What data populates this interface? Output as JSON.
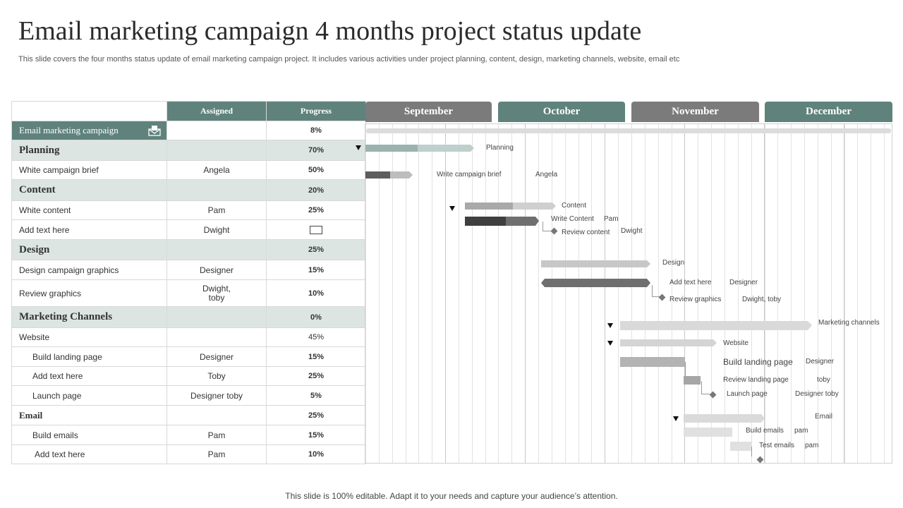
{
  "header": {
    "title": "Email marketing campaign 4 months project status update",
    "subtitle": "This slide covers the four months status update of email marketing campaign project. It includes various activities under project planning, content, design, marketing channels, website, email etc"
  },
  "table": {
    "col_assigned": "Assigned",
    "col_progress": "Progress",
    "rows": [
      {
        "name": "Email marketing campaign",
        "assigned": "",
        "progress": "8%"
      },
      {
        "name": "Planning",
        "assigned": "",
        "progress": "70%"
      },
      {
        "name": "White campaign brief",
        "assigned": "Angela",
        "progress": "50%"
      },
      {
        "name": "Content",
        "assigned": "",
        "progress": "20%"
      },
      {
        "name": "White content",
        "assigned": "Pam",
        "progress": "25%"
      },
      {
        "name": "Add text here",
        "assigned": "Dwight",
        "progress": ""
      },
      {
        "name": "Design",
        "assigned": "",
        "progress": "25%"
      },
      {
        "name": "Design campaign graphics",
        "assigned": "Designer",
        "progress": "15%"
      },
      {
        "name": "Review graphics",
        "assigned": "Dwight,",
        "assigned2": "toby",
        "progress": "10%"
      },
      {
        "name": "Marketing Channels",
        "assigned": "",
        "progress": "0%"
      },
      {
        "name": "Website",
        "assigned": "",
        "progress": "45%"
      },
      {
        "name": "Build landing page",
        "assigned": "Designer",
        "progress": "15%"
      },
      {
        "name": "Add text here",
        "assigned": "Toby",
        "progress": "25%"
      },
      {
        "name": "Launch page",
        "assigned": "Designer toby",
        "progress": "5%"
      },
      {
        "name": "Email",
        "assigned": "",
        "progress": "25%"
      },
      {
        "name": "Build emails",
        "assigned": "Pam",
        "progress": "15%"
      },
      {
        "name": "Add text here",
        "assigned": "Pam",
        "progress": "10%"
      }
    ]
  },
  "months": [
    "September",
    "October",
    "November",
    "December"
  ],
  "gantt": {
    "planning": "Planning",
    "write_brief": "Write campaign brief",
    "angela": "Angela",
    "content": "Content",
    "write_content": "Write Content",
    "pam": "Pam",
    "review_content": "Review content",
    "dwight": "Dwight",
    "design": "Design",
    "add_text": "Add text here",
    "designer": "Designer",
    "review_graphics": "Review graphics",
    "dwight_toby": "Dwight, toby",
    "marketing_channels": "Marketing channels",
    "website": "Website",
    "build_landing": "Build landing page",
    "designer2": "Designer",
    "review_landing": "Review landing page",
    "toby": "toby",
    "launch_page": "Launch page",
    "designer_toby": "Designer toby",
    "email": "Email",
    "build_emails": "Build emails",
    "pam_lc1": "pam",
    "test_emails": "Test emails",
    "pam_lc2": "pam"
  },
  "footer": "This slide is 100% editable. Adapt it to your needs and capture your audience’s attention.",
  "colors": {
    "accent": "#5f827c",
    "gray_header": "#7b7b7b"
  }
}
